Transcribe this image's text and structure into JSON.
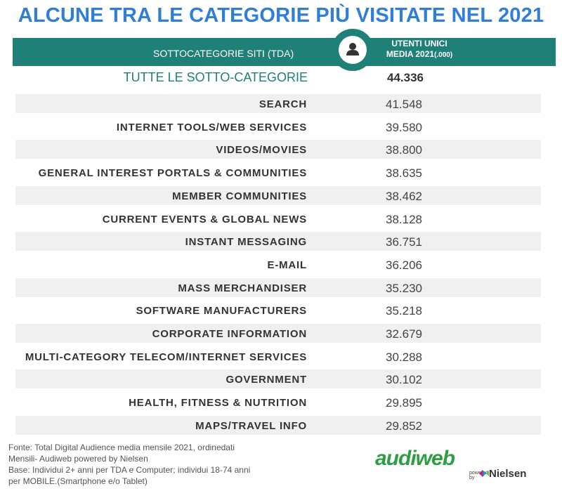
{
  "title": "ALCUNE TRA LE CATEGORIE PIÙ VISITATE NEL 2021",
  "header": {
    "left": "SOTTOCATEGORIE SITI  (TDA)",
    "right_line1": "UTENTI UNICI",
    "right_line2": "MEDIA 2021",
    "right_unit": "(.000)",
    "icon": "user-icon"
  },
  "total": {
    "label": "TUTTE LE SOTTO-CATEGORIE",
    "value": "44.336"
  },
  "chart_data": {
    "type": "table",
    "title": "ALCUNE TRA LE CATEGORIE PIÙ VISITATE NEL 2021",
    "columns": [
      "SOTTOCATEGORIE SITI  (TDA)",
      "UTENTI UNICI MEDIA 2021(.000)"
    ],
    "rows": [
      {
        "label": "SEARCH",
        "value": "41.548"
      },
      {
        "label": "INTERNET TOOLS/WEB SERVICES",
        "value": "39.580"
      },
      {
        "label": "VIDEOS/MOVIES",
        "value": "38.800"
      },
      {
        "label": "GENERAL INTEREST PORTALS & COMMUNITIES",
        "value": "38.635"
      },
      {
        "label": "MEMBER COMMUNITIES",
        "value": "38.462"
      },
      {
        "label": "CURRENT EVENTS & GLOBAL NEWS",
        "value": "38.128"
      },
      {
        "label": "INSTANT MESSAGING",
        "value": "36.751"
      },
      {
        "label": "E-MAIL",
        "value": "36.206"
      },
      {
        "label": "MASS MERCHANDISER",
        "value": "35.230"
      },
      {
        "label": "SOFTWARE MANUFACTURERS",
        "value": "35.218"
      },
      {
        "label": "CORPORATE INFORMATION",
        "value": "32.679"
      },
      {
        "label": "MULTI-CATEGORY TELECOM/INTERNET SERVICES",
        "value": "30.288"
      },
      {
        "label": "GOVERNMENT",
        "value": "30.102"
      },
      {
        "label": "HEALTH, FITNESS & NUTRITION",
        "value": "29.895"
      },
      {
        "label": "MAPS/TRAVEL INFO",
        "value": "29.852"
      }
    ]
  },
  "footnote": {
    "line1": "Fonte: Total Digital Audience media mensile  2021, ordinedati",
    "line2": "Mensili- Audiweb powered by Nielsen",
    "line3": "Base:  Individui 2+ anni per TDA e Computer; individui 18-74 anni",
    "line4": "per MOBILE.(Smartphone e/o Tablet)"
  },
  "logo": {
    "brand": "audiweb",
    "powered": "powered",
    "by": "by",
    "partner": "Nielsen"
  },
  "colors": {
    "title": "#2f7ed8",
    "header": "#1f8078",
    "row_shade": "#f0f0f0",
    "logo": "#2e9e43"
  }
}
